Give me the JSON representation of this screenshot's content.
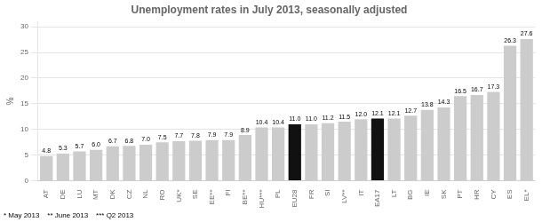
{
  "chart_data": {
    "type": "bar",
    "title": "Unemployment rates in July 2013, seasonally adjusted",
    "y_label": "%",
    "categories": [
      "AT",
      "DE",
      "LU",
      "MT",
      "DK",
      "CZ",
      "NL",
      "RO",
      "UK*",
      "SE",
      "EE**",
      "FI",
      "BE**",
      "HU***",
      "PL",
      "EU28",
      "FR",
      "SI",
      "LV**",
      "IT",
      "EA17",
      "LT",
      "BG",
      "IE",
      "SK",
      "PT",
      "HR",
      "CY",
      "ES",
      "EL*"
    ],
    "values": [
      4.8,
      5.3,
      5.7,
      6.0,
      6.7,
      6.8,
      7.0,
      7.5,
      7.7,
      7.8,
      7.9,
      7.9,
      8.9,
      10.4,
      10.4,
      11.0,
      11.0,
      11.2,
      11.5,
      12.0,
      12.1,
      12.1,
      12.7,
      13.8,
      14.3,
      16.5,
      16.7,
      17.3,
      26.3,
      27.6
    ],
    "value_labels": [
      "4.8",
      "5.3",
      "5.7",
      "6.0",
      "6.7",
      "6.8",
      "7.0",
      "7.5",
      "7.7",
      "7.8",
      "7.9",
      "7.9",
      "8.9",
      "10.4",
      "10.4",
      "11.0",
      "11.0",
      "11.2",
      "11.5",
      "12.0",
      "12.1",
      "12.1",
      "12.7",
      "13.8",
      "14.3",
      "16.5",
      "16.7",
      "17.3",
      "26.3",
      "27.6"
    ],
    "colors": [
      "#cccccc",
      "#cccccc",
      "#cccccc",
      "#cccccc",
      "#cccccc",
      "#cccccc",
      "#cccccc",
      "#cccccc",
      "#cccccc",
      "#cccccc",
      "#cccccc",
      "#cccccc",
      "#cccccc",
      "#cccccc",
      "#cccccc",
      "#111111",
      "#cccccc",
      "#cccccc",
      "#cccccc",
      "#cccccc",
      "#111111",
      "#cccccc",
      "#cccccc",
      "#cccccc",
      "#cccccc",
      "#cccccc",
      "#cccccc",
      "#cccccc",
      "#cccccc",
      "#cccccc"
    ],
    "ylim": [
      0,
      31
    ],
    "yticks": [
      0,
      5,
      10,
      15,
      20,
      25,
      30
    ],
    "grid": true,
    "data_labels": true,
    "annotations": [
      "* May 2013    ** June 2013    *** Q2 2013"
    ]
  }
}
